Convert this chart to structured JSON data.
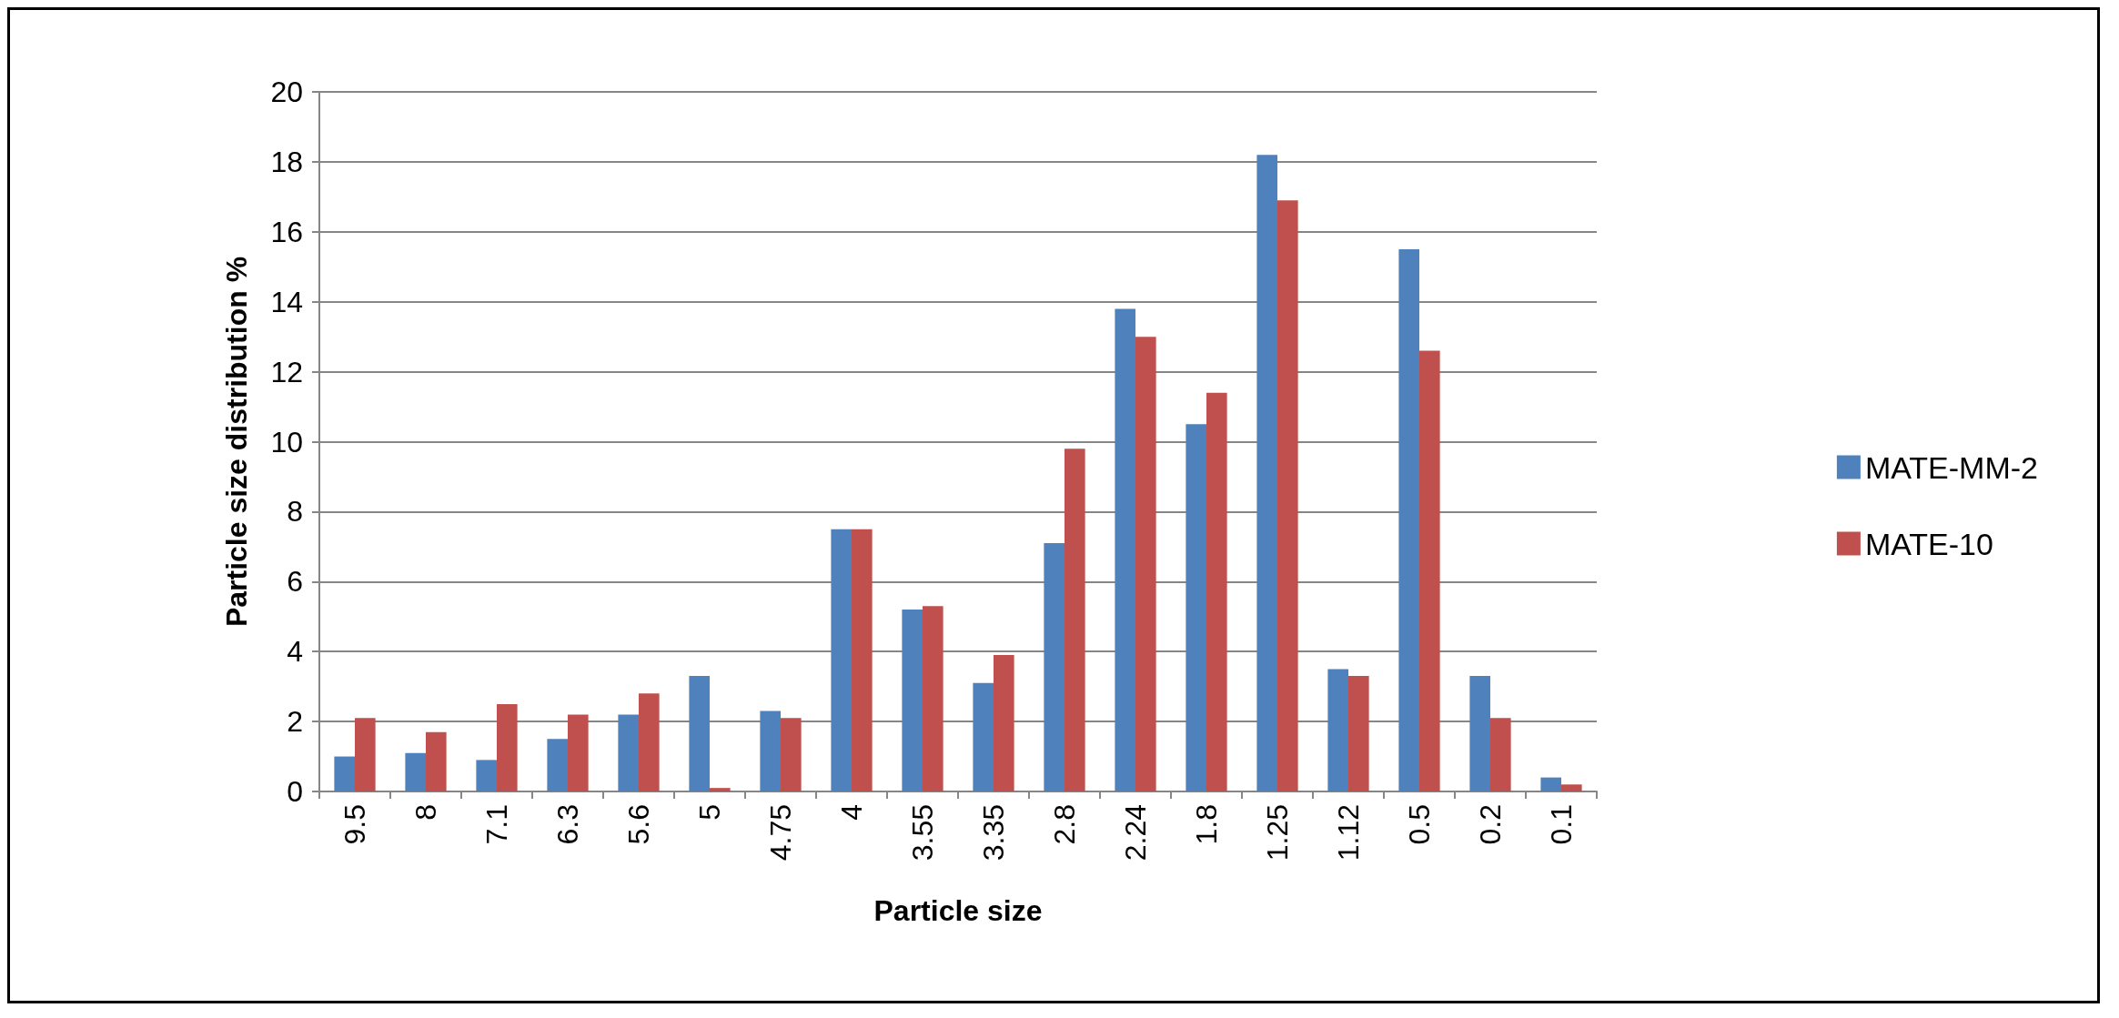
{
  "chart_data": {
    "type": "bar",
    "xlabel": "Particle size",
    "ylabel": "Particle size distribution %",
    "categories": [
      "9.5",
      "8",
      "7.1",
      "6.3",
      "5.6",
      "5",
      "4.75",
      "4",
      "3.55",
      "3.35",
      "2.8",
      "2.24",
      "1.8",
      "1.25",
      "1.12",
      "0.5",
      "0.2",
      "0.1"
    ],
    "series": [
      {
        "name": "MATE-MM-2",
        "color": "#4f81bd",
        "values": [
          1.0,
          1.1,
          0.9,
          1.5,
          2.2,
          3.3,
          2.3,
          7.5,
          5.2,
          3.1,
          7.1,
          13.8,
          10.5,
          18.2,
          3.5,
          15.5,
          3.3,
          0.4
        ]
      },
      {
        "name": "MATE-10",
        "color": "#c0504d",
        "values": [
          2.1,
          1.7,
          2.5,
          2.2,
          2.8,
          0.1,
          2.1,
          7.5,
          5.3,
          3.9,
          9.8,
          13.0,
          11.4,
          16.9,
          3.3,
          12.6,
          2.1,
          0.2
        ]
      }
    ],
    "ylim": [
      0,
      20
    ],
    "yticks": [
      0,
      2,
      4,
      6,
      8,
      10,
      12,
      14,
      16,
      18,
      20
    ],
    "grid": "y",
    "legend": "right"
  }
}
